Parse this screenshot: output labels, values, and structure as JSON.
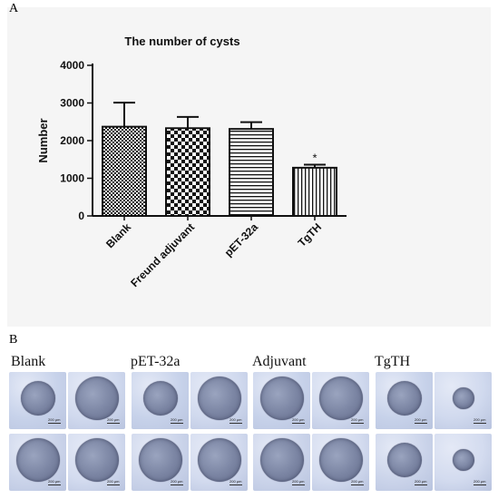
{
  "panel_labels": {
    "a": "A",
    "b": "B"
  },
  "chart_data": {
    "type": "bar",
    "title": "The number of cysts",
    "xlabel": "",
    "ylabel": "Number",
    "categories": [
      "Blank",
      "Freund adjuvant",
      "pET-32a",
      "TgTH"
    ],
    "values": [
      2370,
      2330,
      2310,
      1280
    ],
    "errors": [
      640,
      300,
      180,
      80
    ],
    "ylim": [
      0,
      4000
    ],
    "yticks": [
      0,
      1000,
      2000,
      3000,
      4000
    ],
    "ytick_labels": [
      "0",
      "1000",
      "2000",
      "3000",
      "4000"
    ],
    "patterns": [
      "check-small",
      "check-large",
      "hlines",
      "vlines"
    ],
    "significance": [
      "",
      "",
      "",
      "*"
    ],
    "grid": false,
    "legend": "none"
  },
  "micrographs": {
    "groups": [
      "Blank",
      "pET-32a",
      "Adjuvant",
      "TgTH"
    ],
    "scale_label": "200 μm",
    "cyst_size_class": [
      [
        "medium",
        "large",
        "large",
        "large"
      ],
      [
        "medium",
        "large",
        "large",
        "large"
      ],
      [
        "large",
        "large",
        "large",
        "large"
      ],
      [
        "medium",
        "small",
        "medium",
        "small"
      ]
    ]
  }
}
